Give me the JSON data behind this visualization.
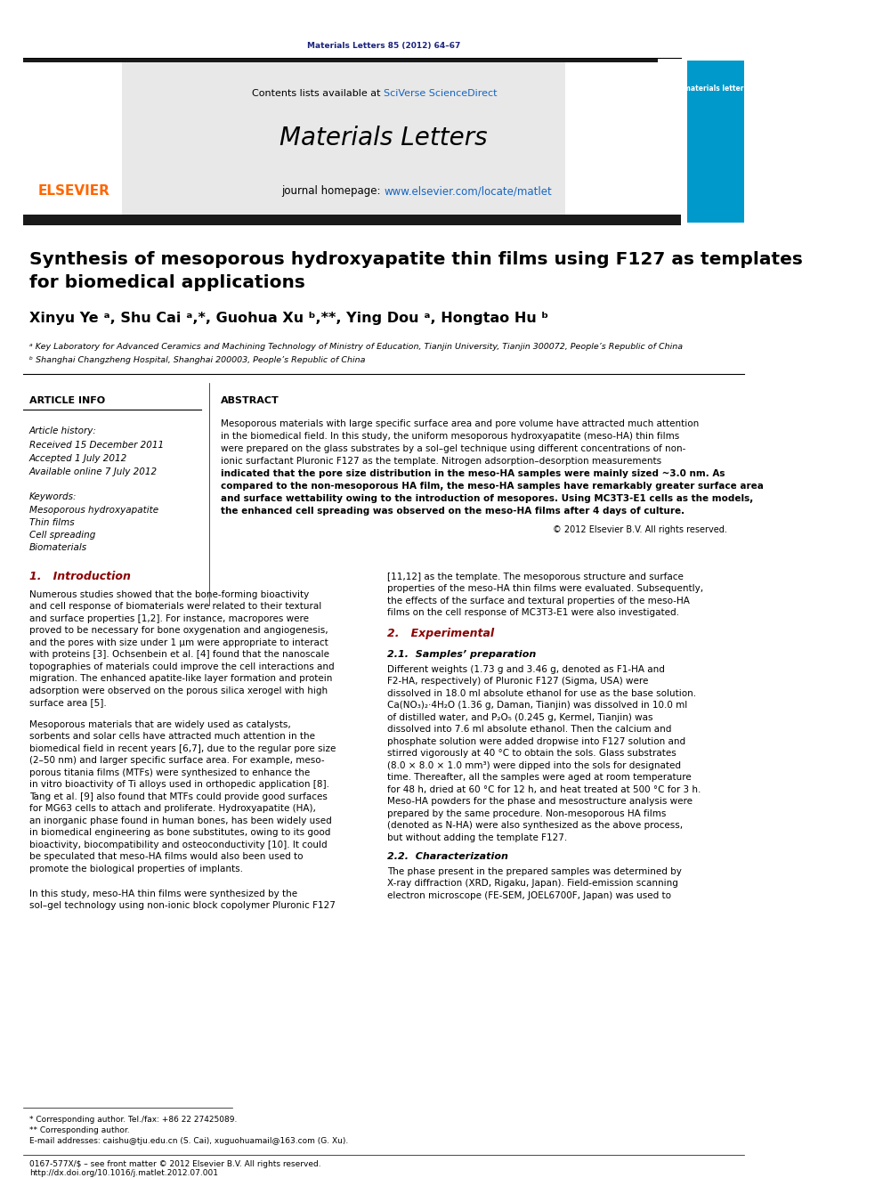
{
  "page_width": 9.92,
  "page_height": 13.23,
  "bg_color": "#ffffff",
  "header_journal_text": "Materials Letters 85 (2012) 64–67",
  "header_journal_color": "#1a237e",
  "journal_name": "Materials Letters",
  "contents_text": "Contents lists available at",
  "sciverse_text": "SciVerse ScienceDirect",
  "homepage_text": "journal homepage: ",
  "homepage_url": "www.elsevier.com/locate/matlet",
  "elsevier_color": "#FF6600",
  "sciverse_color": "#1565C0",
  "header_bg": "#e8e8e8",
  "dark_bar_color": "#1a1a1a",
  "journal_cover_color": "#0099CC",
  "article_title_line1": "Synthesis of mesoporous hydroxyapatite thin films using F127 as templates",
  "article_title_line2": "for biomedical applications",
  "authors": "Xinyu Ye ᵃ, Shu Cai ᵃ,*, Guohua Xu ᵇ,**, Ying Dou ᵃ, Hongtao Hu ᵇ",
  "affil1": "ᵃ Key Laboratory for Advanced Ceramics and Machining Technology of Ministry of Education, Tianjin University, Tianjin 300072, People’s Republic of China",
  "affil2": "ᵇ Shanghai Changzheng Hospital, Shanghai 200003, People’s Republic of China",
  "section_article_info": "ARTICLE INFO",
  "section_abstract": "ABSTRACT",
  "article_history_label": "Article history:",
  "received_text": "Received 15 December 2011",
  "accepted_text": "Accepted 1 July 2012",
  "available_text": "Available online 7 July 2012",
  "keywords_label": "Keywords:",
  "keyword1": "Mesoporous hydroxyapatite",
  "keyword2": "Thin films",
  "keyword3": "Cell spreading",
  "keyword4": "Biomaterials",
  "abstract_text": "Mesoporous materials with large specific surface area and pore volume have attracted much attention in the biomedical field. In this study, the uniform mesoporous hydroxyapatite (meso-HA) thin films were prepared on the glass substrates by a sol–gel technique using different concentrations of non-ionic surfactant Pluronic F127 as the template. Nitrogen adsorption–desorption measurements indicated that the pore size distribution in the meso-HA samples were mainly sized ~3.0 nm. As compared to the non-mesoporous HA film, the meso-HA samples have remarkably greater surface area and surface wettability owing to the introduction of mesopores. Using MC3T3-E1 cells as the models, the enhanced cell spreading was observed on the meso-HA films after 4 days of culture.",
  "copyright_text": "© 2012 Elsevier B.V. All rights reserved.",
  "intro_heading": "1.   Introduction",
  "intro_text1": "Numerous studies showed that the bone-forming bioactivity and cell response of biomaterials were related to their textural and surface properties [1,2]. For instance, macropores were proved to be necessary for bone oxygenation and angiogenesis, and the pores with size under 1 μm were appropriate to interact with proteins [3]. Ochsenbein et al. [4] found that the nanoscale topographies of materials could improve the cell interactions and migration. The enhanced apatite-like layer formation and protein adsorption were observed on the porous silica xerogel with high surface area [5].",
  "intro_text2": "Mesoporous materials that are widely used as catalysts, sorbents and solar cells have attracted much attention in the biomedical field in recent years [6,7], due to the regular pore size (2–50 nm) and larger specific surface area. For example, meso-porous titania films (MTFs) were synthesized to enhance the in vitro bioactivity of Ti alloys used in orthopedic application [8]. Tang et al. [9] also found that MTFs could provide good surfaces for MG63 cells to attach and proliferate. Hydroxyapatite (HA), an inorganic phase found in human bones, has been widely used in biomedical engineering as bone substitutes, owing to its good bioactivity, biocompatibility and osteoconductivity [10]. It could be speculated that meso-HA films would also been used to promote the biological properties of implants.",
  "intro_text3": "In this study, meso-HA thin films were synthesized by the sol–gel technology using non-ionic block copolymer Pluronic F127",
  "right_col_text1": "[11,12] as the template. The mesoporous structure and surface properties of the meso-HA thin films were evaluated. Subsequently, the effects of the surface and textural properties of the meso-HA films on the cell response of MC3T3-E1 were also investigated.",
  "exp_heading": "2.   Experimental",
  "exp_subheading": "2.1.  Samples’ preparation",
  "exp_text1": "Different weights (1.73 g and 3.46 g, denoted as F1-HA and F2-HA, respectively) of Pluronic F127 (Sigma, USA) were dissolved in 18.0 ml absolute ethanol for use as the base solution. Ca(NO₃)₂·4H₂O (1.36 g, Daman, Tianjin) was dissolved in 10.0 ml of distilled water, and P₂O₅ (0.245 g, Kermel, Tianjin) was dissolved into 7.6 ml absolute ethanol. Then the calcium and phosphate solution were added dropwise into F127 solution and stirred vigorously at 40 °C to obtain the sols. Glass substrates (8.0 × 8.0 × 1.0 mm³) were dipped into the sols for designated time. Thereafter, all the samples were aged at room temperature for 48 h, dried at 60 °C for 12 h, and heat treated at 500 °C for 3 h. Meso-HA powders for the phase and mesostructure analysis were prepared by the same procedure. Non-mesoporous HA films (denoted as N-HA) were also synthesized as the above process, but without adding the template F127.",
  "char_subheading": "2.2.  Characterization",
  "char_text1": "The phase present in the prepared samples was determined by X-ray diffraction (XRD, Rigaku, Japan). Field-emission scanning electron microscope (FE-SEM, JOEL6700F, Japan) was used to",
  "footnote_star": "* Corresponding author. Tel./fax: +86 22 27425089.",
  "footnote_dstar": "** Corresponding author.",
  "footnote_email": "E-mail addresses: caishu@tju.edu.cn (S. Cai), xuguohuamail@163.com (G. Xu).",
  "footer_line1": "0167-577X/$ – see front matter © 2012 Elsevier B.V. All rights reserved.",
  "footer_line2": "http://dx.doi.org/10.1016/j.matlet.2012.07.001"
}
